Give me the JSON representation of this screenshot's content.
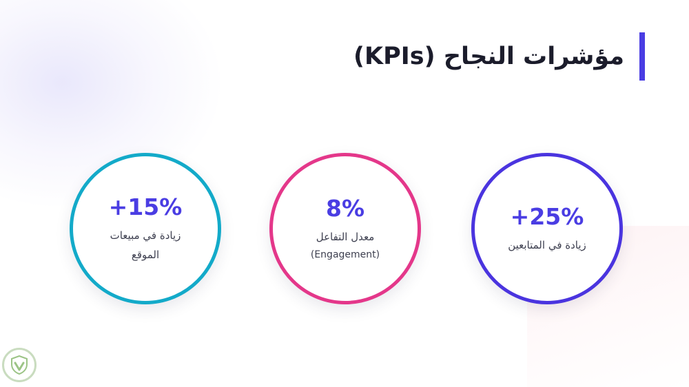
{
  "slide": {
    "title": "مؤشرات النجاح (KPIs)",
    "accent_color": "#4a3de3"
  },
  "kpis": [
    {
      "value": "+15%",
      "label_line1": "زيادة في مبيعات",
      "label_line2": "الموقع",
      "ring_color": "#13aac9"
    },
    {
      "value": "8%",
      "label_line1": "معدل التفاعل",
      "label_line2": "(Engagement)",
      "ring_color": "#e4378a"
    },
    {
      "value": "+25%",
      "label_line1": "زيادة في المتابعين",
      "ring_color": "#4a34df"
    }
  ],
  "watermark": {
    "icon": "shield-logo-icon",
    "color": "#9cc486"
  }
}
